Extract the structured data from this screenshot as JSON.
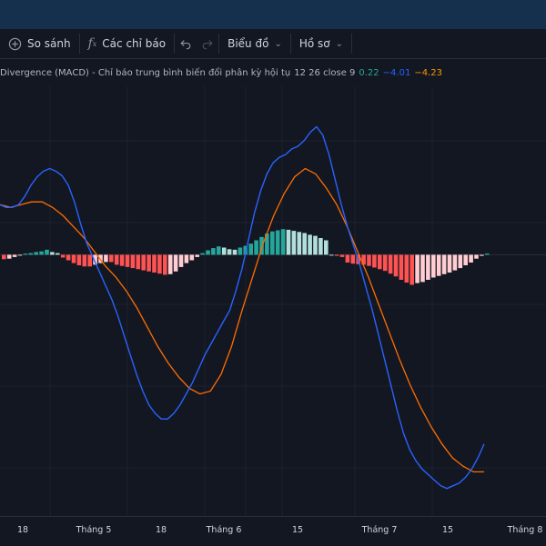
{
  "toolbar": {
    "compare_label": "So sánh",
    "indicators_label": "Các chỉ báo",
    "chart_label": "Biểu đồ",
    "profile_label": "Hồ sơ"
  },
  "legend": {
    "title": "Divergence (MACD) - Chỉ báo trung bình biến đổi phân kỳ hội tụ",
    "params": "12 26 close 9",
    "histogram_value": "0.22",
    "macd_value": "−4.01",
    "signal_value": "−4.23"
  },
  "colors": {
    "hist_up_strong": "#26a69a",
    "hist_up_weak": "#b2dfdb",
    "hist_down_strong": "#ff5252",
    "hist_down_weak": "#ffcdd2",
    "macd_line": "#2962ff",
    "signal_line": "#ff6d00"
  },
  "chart_data": {
    "type": "bar",
    "indicator": "MACD",
    "x_ticks": [
      "18",
      "Tháng 5",
      "18",
      "Tháng 6",
      "15",
      "Tháng 7",
      "15",
      "Tháng 8"
    ],
    "histogram": [
      -0.8,
      -0.7,
      -0.4,
      -0.1,
      0.2,
      0.3,
      0.5,
      0.6,
      0.9,
      0.5,
      0.3,
      -0.5,
      -1.0,
      -1.5,
      -1.9,
      -2.1,
      -2.1,
      -1.8,
      -1.5,
      -1.3,
      -1.3,
      -1.8,
      -2.0,
      -2.2,
      -2.4,
      -2.6,
      -2.8,
      -3.0,
      -3.2,
      -3.4,
      -3.6,
      -3.5,
      -3.0,
      -2.2,
      -1.5,
      -1.0,
      -0.4,
      0.3,
      0.8,
      1.2,
      1.5,
      1.3,
      1.0,
      0.9,
      1.3,
      1.6,
      2.0,
      2.6,
      3.2,
      3.8,
      4.2,
      4.4,
      4.6,
      4.5,
      4.3,
      4.1,
      3.9,
      3.6,
      3.4,
      3.0,
      2.6,
      0,
      -0.2,
      -0.4,
      -1.4,
      -1.6,
      -1.7,
      -1.8,
      -2.0,
      -2.3,
      -2.6,
      -2.9,
      -3.4,
      -3.9,
      -4.5,
      -5.0,
      -5.4,
      -5.1,
      -4.9,
      -4.5,
      -4.1,
      -3.8,
      -3.5,
      -3.2,
      -2.8,
      -2.4,
      -1.9,
      -1.4,
      -0.7,
      -0.2,
      0.22
    ],
    "macd": [
      9.0,
      8.5,
      8.5,
      9.0,
      10.5,
      12.5,
      14.0,
      15.0,
      15.5,
      15.0,
      14.2,
      12.5,
      9.5,
      5.5,
      2.0,
      -0.5,
      -3.0,
      -5.5,
      -8.0,
      -11.0,
      -14.5,
      -18.0,
      -21.5,
      -24.5,
      -27.0,
      -28.5,
      -29.5,
      -29.5,
      -28.5,
      -27.0,
      -25.0,
      -23.0,
      -20.5,
      -18.0,
      -16.0,
      -14.0,
      -12.0,
      -10.0,
      -6.5,
      -2.5,
      2.5,
      7.5,
      11.5,
      14.5,
      16.5,
      17.5,
      18.0,
      19.0,
      19.5,
      20.5,
      22.0,
      23.0,
      21.5,
      18.0,
      13.5,
      9.0,
      5.0,
      1.5,
      -2.0,
      -6.0,
      -10.0,
      -14.5,
      -19.0,
      -23.5,
      -28.0,
      -32.0,
      -35.0,
      -37.0,
      -38.5,
      -39.5,
      -40.5,
      -41.5,
      -42.0,
      -41.5,
      -41.0,
      -40.0,
      -38.5,
      -36.5,
      -34.0
    ],
    "signal": [
      9.0,
      8.5,
      9.0,
      9.5,
      9.5,
      8.5,
      7.0,
      5.0,
      3.0,
      0.5,
      -2.0,
      -4.0,
      -6.5,
      -9.5,
      -13.0,
      -16.5,
      -19.5,
      -22.0,
      -24.0,
      -25.0,
      -24.5,
      -21.5,
      -16.5,
      -10.0,
      -4.0,
      2.0,
      7.0,
      11.0,
      14.0,
      15.5,
      14.5,
      12.0,
      9.0,
      5.0,
      0.5,
      -4.0,
      -9.0,
      -14.0,
      -19.0,
      -23.5,
      -27.5,
      -31.0,
      -34.0,
      -36.5,
      -38.0,
      -39.0,
      -39.0
    ],
    "ylim": [
      -44,
      27
    ]
  },
  "axis": {
    "x_labels": [
      {
        "text": "18"
      },
      {
        "text": "Tháng 5"
      },
      {
        "text": "18"
      },
      {
        "text": "Tháng 6"
      },
      {
        "text": "15"
      },
      {
        "text": "Tháng 7"
      },
      {
        "text": "15"
      },
      {
        "text": "Tháng 8"
      }
    ]
  }
}
